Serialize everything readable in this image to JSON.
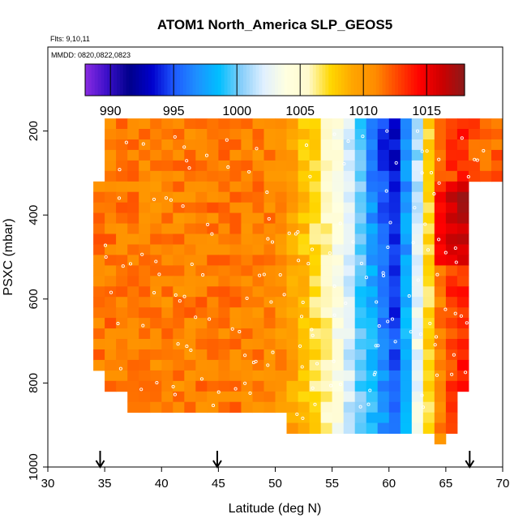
{
  "chart_data": {
    "type": "heatmap",
    "title": "ATOM1 North_America SLP_GEOS5",
    "flights_label": "Flts: 9,10,11",
    "dates_label": "MMDD: 0820,0822,0823",
    "xlabel": "Latitude (deg N)",
    "ylabel": "PSXC (mbar)",
    "xlim": [
      30,
      70
    ],
    "ylim": [
      1000,
      0
    ],
    "x_ticks": [
      30,
      35,
      40,
      45,
      50,
      55,
      60,
      65,
      70
    ],
    "y_ticks": [
      200,
      400,
      600,
      800,
      1000
    ],
    "colorbar": {
      "min": 988,
      "max": 1018,
      "ticks": [
        990,
        995,
        1000,
        1005,
        1010,
        1015
      ],
      "colors": [
        "#8a2be2",
        "#3a0fc8",
        "#00008b",
        "#0000cd",
        "#1e5aff",
        "#1e90ff",
        "#00bfff",
        "#87cefa",
        "#e0f0ff",
        "#ffffe0",
        "#fffacd",
        "#ffd700",
        "#ffa500",
        "#ff8c00",
        "#ff4500",
        "#ff0000",
        "#cc0000",
        "#8b1a1a"
      ]
    },
    "arrows_lat": [
      34.6,
      44.9,
      67.1
    ],
    "profile": {
      "lat": [
        35,
        40,
        45,
        50,
        52,
        55,
        57,
        59,
        60.5,
        62,
        64,
        66,
        68
      ],
      "slp": [
        1011.5,
        1011,
        1011.5,
        1011,
        1009,
        1005,
        1001,
        996,
        994,
        999,
        1010,
        1014,
        1012
      ]
    }
  }
}
